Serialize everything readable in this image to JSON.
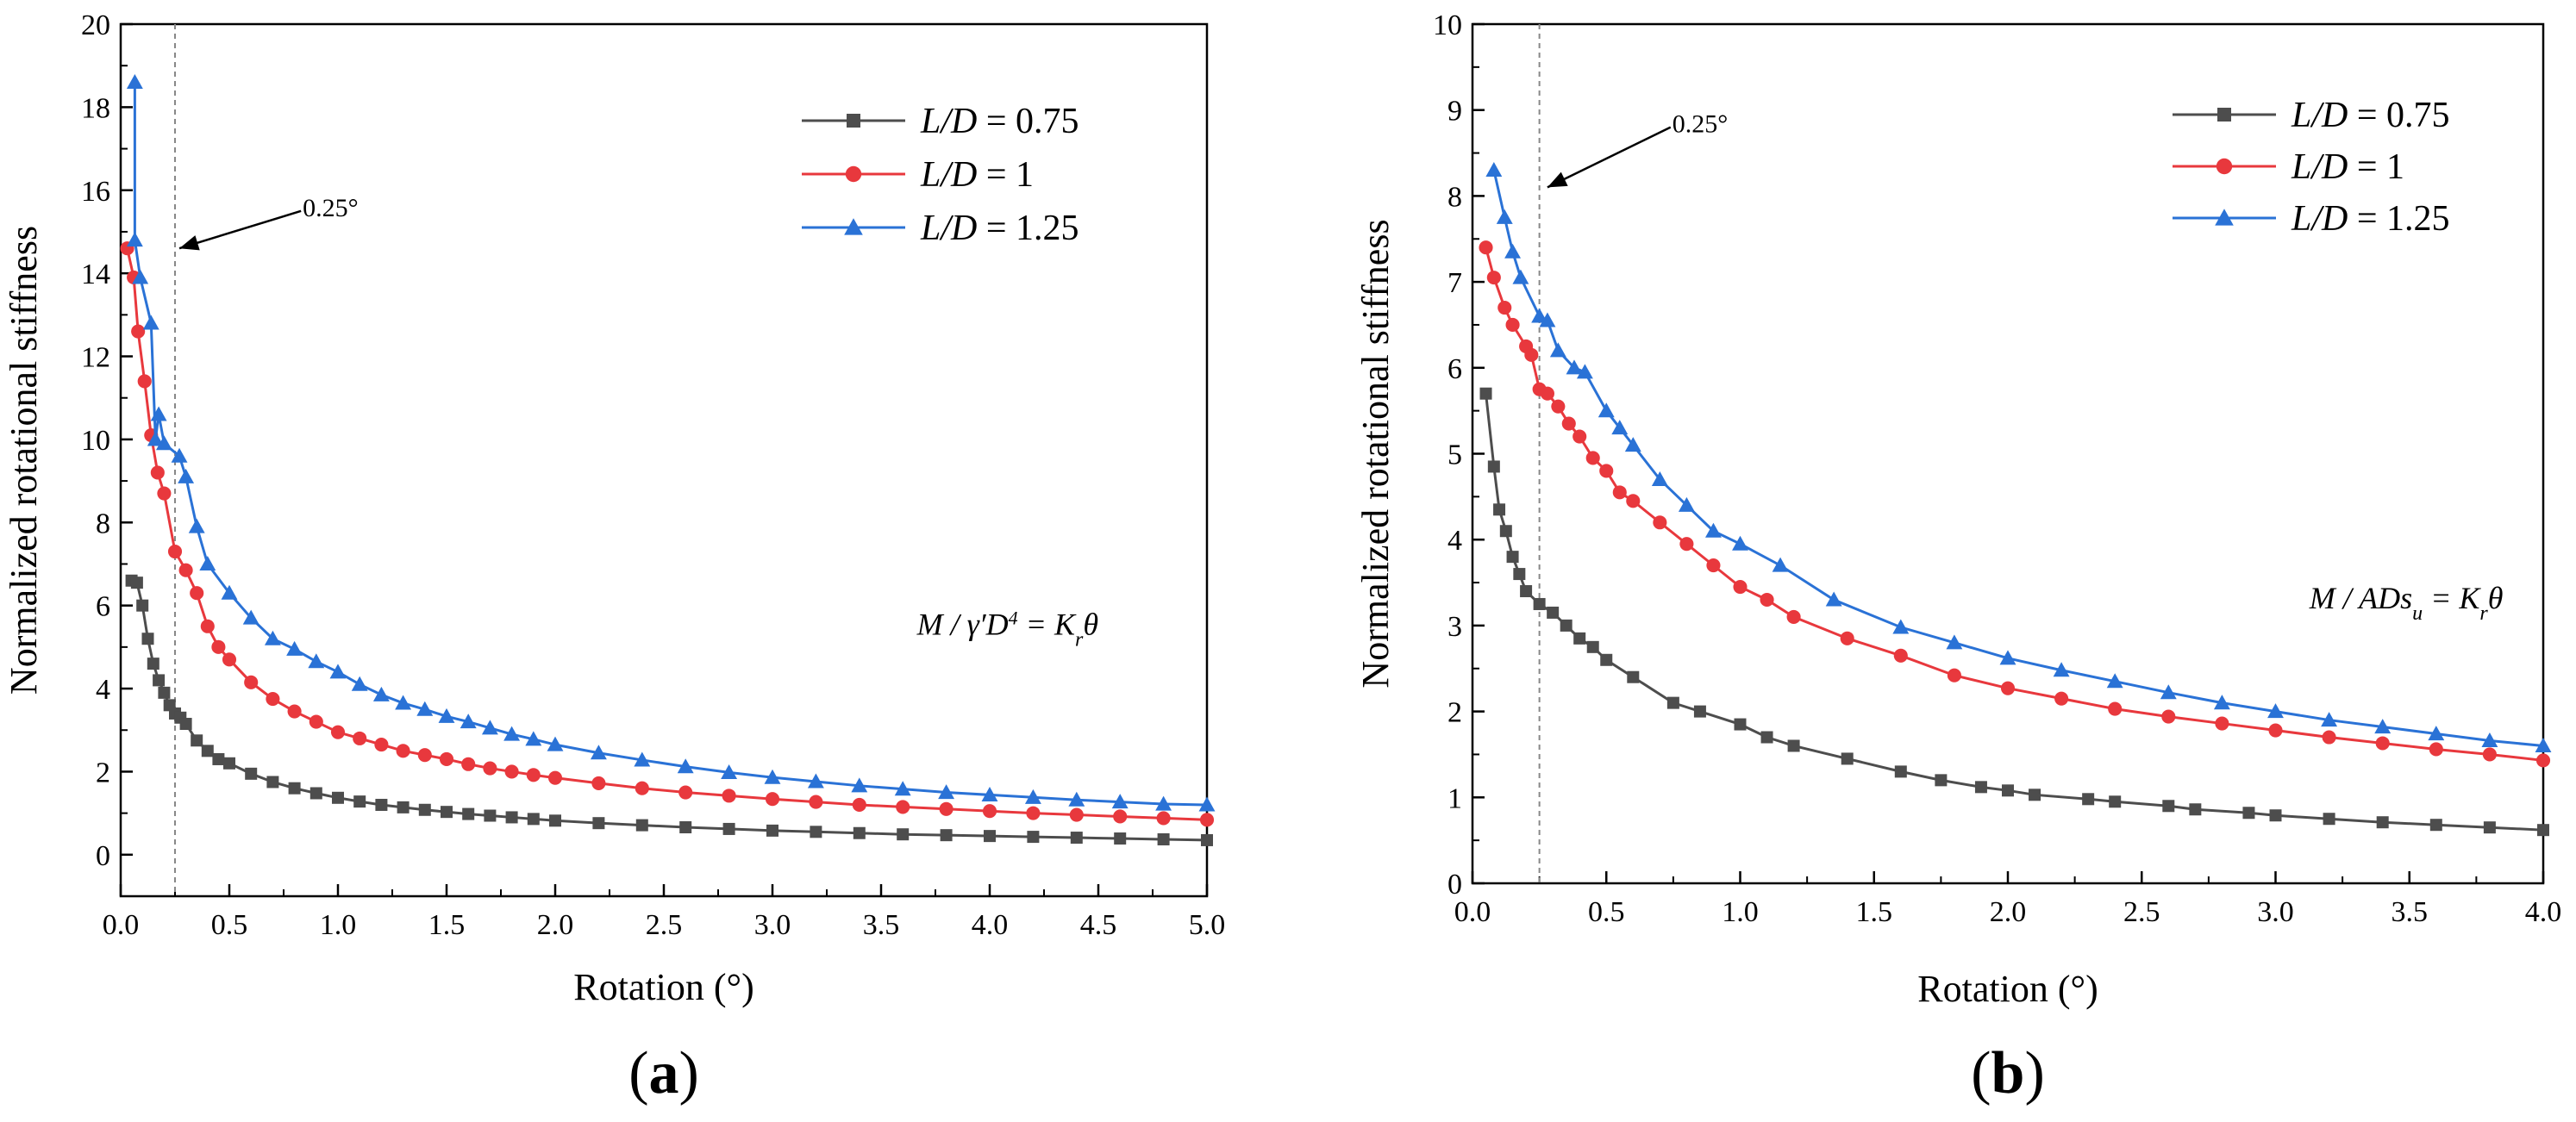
{
  "chart_data": [
    {
      "type": "line",
      "panel_label": "a",
      "xlabel": "Rotation (°)",
      "ylabel": "Normalized rotational stiffness",
      "xlim": [
        0,
        5
      ],
      "ylim": [
        -1,
        20
      ],
      "xticks": [
        0,
        0.5,
        1,
        1.5,
        2,
        2.5,
        3,
        3.5,
        4,
        4.5,
        5
      ],
      "xtick_labels": [
        "0.0",
        "0.5",
        "1.0",
        "1.5",
        "2.0",
        "2.5",
        "3.0",
        "3.5",
        "4.0",
        "4.5",
        "5.0"
      ],
      "yticks": [
        0,
        2,
        4,
        6,
        8,
        10,
        12,
        14,
        16,
        18,
        20
      ],
      "ytick_labels": [
        "0",
        "2",
        "4",
        "6",
        "8",
        "10",
        "12",
        "14",
        "16",
        "18",
        "20"
      ],
      "legend_position": "top-right",
      "vline": {
        "x": 0.25,
        "label": "0.25°",
        "arrow_from": [
          0.83,
          15.5
        ],
        "arrow_to": [
          0.27,
          14.6
        ]
      },
      "formula": {
        "anchor": [
          4.5,
          5.3
        ],
        "parts": [
          [
            "M / ",
            ""
          ],
          [
            "γ",
            ""
          ],
          [
            "′",
            ""
          ],
          [
            "D",
            ""
          ],
          [
            "4",
            "sup"
          ],
          [
            " = K",
            ""
          ],
          [
            "r",
            "sub"
          ],
          [
            "θ",
            ""
          ]
        ]
      },
      "series": [
        {
          "name": "L/D = 0.75",
          "legend_italic": "L/D",
          "legend_rest": " = 0.75",
          "color": "#4d4d4d",
          "marker": "square",
          "x": [
            0.05,
            0.075,
            0.1,
            0.125,
            0.15,
            0.175,
            0.2,
            0.225,
            0.25,
            0.275,
            0.3,
            0.35,
            0.4,
            0.45,
            0.5,
            0.6,
            0.7,
            0.8,
            0.9,
            1.0,
            1.1,
            1.2,
            1.3,
            1.4,
            1.5,
            1.6,
            1.7,
            1.8,
            1.9,
            2.0,
            2.2,
            2.4,
            2.6,
            2.8,
            3.0,
            3.2,
            3.4,
            3.6,
            3.8,
            4.0,
            4.2,
            4.4,
            4.6,
            4.8,
            5.0
          ],
          "y": [
            6.6,
            6.55,
            6.0,
            5.2,
            4.6,
            4.2,
            3.9,
            3.6,
            3.4,
            3.3,
            3.15,
            2.75,
            2.5,
            2.3,
            2.2,
            1.95,
            1.75,
            1.6,
            1.48,
            1.37,
            1.28,
            1.2,
            1.14,
            1.08,
            1.03,
            0.98,
            0.94,
            0.9,
            0.86,
            0.82,
            0.76,
            0.71,
            0.66,
            0.62,
            0.58,
            0.55,
            0.52,
            0.49,
            0.47,
            0.45,
            0.43,
            0.41,
            0.39,
            0.37,
            0.35
          ]
        },
        {
          "name": "L/D = 1",
          "legend_italic": "L/D",
          "legend_rest": " = 1",
          "color": "#e8383d",
          "marker": "circle",
          "x": [
            0.03,
            0.06,
            0.08,
            0.11,
            0.14,
            0.17,
            0.2,
            0.25,
            0.3,
            0.35,
            0.4,
            0.45,
            0.5,
            0.6,
            0.7,
            0.8,
            0.9,
            1.0,
            1.1,
            1.2,
            1.3,
            1.4,
            1.5,
            1.6,
            1.7,
            1.8,
            1.9,
            2.0,
            2.2,
            2.4,
            2.6,
            2.8,
            3.0,
            3.2,
            3.4,
            3.6,
            3.8,
            4.0,
            4.2,
            4.4,
            4.6,
            4.8,
            5.0
          ],
          "y": [
            14.6,
            13.9,
            12.6,
            11.4,
            10.1,
            9.2,
            8.7,
            7.3,
            6.85,
            6.3,
            5.5,
            5.0,
            4.7,
            4.15,
            3.75,
            3.45,
            3.2,
            2.95,
            2.8,
            2.65,
            2.5,
            2.4,
            2.3,
            2.18,
            2.08,
            2.0,
            1.92,
            1.85,
            1.72,
            1.6,
            1.5,
            1.42,
            1.34,
            1.27,
            1.2,
            1.15,
            1.1,
            1.05,
            1.0,
            0.96,
            0.92,
            0.88,
            0.84
          ]
        },
        {
          "name": "L/D = 1.25",
          "legend_italic": "L/D",
          "legend_rest": " = 1.25",
          "color": "#2a72d6",
          "marker": "triangle",
          "x": [
            0.065,
            0.065,
            0.09,
            0.14,
            0.16,
            0.175,
            0.2,
            0.27,
            0.3,
            0.35,
            0.4,
            0.5,
            0.6,
            0.7,
            0.8,
            0.9,
            1.0,
            1.1,
            1.2,
            1.3,
            1.4,
            1.5,
            1.6,
            1.7,
            1.8,
            1.9,
            2.0,
            2.2,
            2.4,
            2.6,
            2.8,
            3.0,
            3.2,
            3.4,
            3.6,
            3.8,
            4.0,
            4.2,
            4.4,
            4.6,
            4.8,
            5.0
          ],
          "y": [
            18.6,
            14.8,
            13.9,
            12.8,
            10.0,
            10.6,
            9.9,
            9.6,
            9.1,
            7.9,
            7.0,
            6.3,
            5.7,
            5.2,
            4.95,
            4.65,
            4.4,
            4.1,
            3.85,
            3.65,
            3.5,
            3.33,
            3.2,
            3.05,
            2.9,
            2.78,
            2.65,
            2.45,
            2.28,
            2.12,
            1.98,
            1.86,
            1.76,
            1.66,
            1.58,
            1.5,
            1.44,
            1.38,
            1.32,
            1.27,
            1.22,
            1.2
          ]
        }
      ]
    },
    {
      "type": "line",
      "panel_label": "b",
      "xlabel": "Rotation (°)",
      "ylabel": "Normalized rotational stiffness",
      "xlim": [
        0,
        4
      ],
      "ylim": [
        0,
        10
      ],
      "xticks": [
        0,
        0.5,
        1,
        1.5,
        2,
        2.5,
        3,
        3.5,
        4
      ],
      "xtick_labels": [
        "0.0",
        "0.5",
        "1.0",
        "1.5",
        "2.0",
        "2.5",
        "3.0",
        "3.5",
        "4.0"
      ],
      "yticks": [
        0,
        1,
        2,
        3,
        4,
        5,
        6,
        7,
        8,
        9,
        10
      ],
      "ytick_labels": [
        "0",
        "1",
        "2",
        "3",
        "4",
        "5",
        "6",
        "7",
        "8",
        "9",
        "10"
      ],
      "legend_position": "top-right",
      "vline": {
        "x": 0.25,
        "label": "0.25°",
        "arrow_from": [
          0.74,
          8.8
        ],
        "arrow_to": [
          0.28,
          8.1
        ]
      },
      "formula": {
        "anchor": [
          3.85,
          3.2
        ],
        "parts": [
          [
            "M / ADs",
            ""
          ],
          [
            "u",
            "sub"
          ],
          [
            " = K",
            ""
          ],
          [
            "r",
            "sub"
          ],
          [
            "θ",
            ""
          ]
        ]
      },
      "series": [
        {
          "name": "L/D = 0.75",
          "legend_italic": "L/D",
          "legend_rest": " = 0.75",
          "color": "#4d4d4d",
          "marker": "square",
          "x": [
            0.05,
            0.08,
            0.1,
            0.125,
            0.15,
            0.175,
            0.2,
            0.25,
            0.3,
            0.35,
            0.4,
            0.45,
            0.5,
            0.6,
            0.75,
            0.85,
            1.0,
            1.1,
            1.2,
            1.4,
            1.6,
            1.75,
            1.9,
            2.0,
            2.1,
            2.3,
            2.4,
            2.6,
            2.7,
            2.9,
            3.0,
            3.2,
            3.4,
            3.6,
            3.8,
            4.0
          ],
          "y": [
            5.7,
            4.85,
            4.35,
            4.1,
            3.8,
            3.6,
            3.4,
            3.25,
            3.15,
            3.0,
            2.85,
            2.75,
            2.6,
            2.4,
            2.1,
            2.0,
            1.85,
            1.7,
            1.6,
            1.45,
            1.3,
            1.2,
            1.12,
            1.08,
            1.03,
            0.98,
            0.95,
            0.9,
            0.86,
            0.82,
            0.79,
            0.75,
            0.71,
            0.68,
            0.65,
            0.62
          ]
        },
        {
          "name": "L/D = 1",
          "legend_italic": "L/D",
          "legend_rest": " = 1",
          "color": "#e8383d",
          "marker": "circle",
          "x": [
            0.05,
            0.08,
            0.12,
            0.15,
            0.2,
            0.22,
            0.25,
            0.28,
            0.32,
            0.36,
            0.4,
            0.45,
            0.5,
            0.55,
            0.6,
            0.7,
            0.8,
            0.9,
            1.0,
            1.1,
            1.2,
            1.4,
            1.6,
            1.8,
            2.0,
            2.2,
            2.4,
            2.6,
            2.8,
            3.0,
            3.2,
            3.4,
            3.6,
            3.8,
            4.0
          ],
          "y": [
            7.4,
            7.05,
            6.7,
            6.5,
            6.25,
            6.15,
            5.75,
            5.7,
            5.55,
            5.35,
            5.2,
            4.95,
            4.8,
            4.55,
            4.45,
            4.2,
            3.95,
            3.7,
            3.45,
            3.3,
            3.1,
            2.85,
            2.65,
            2.42,
            2.27,
            2.15,
            2.03,
            1.94,
            1.86,
            1.78,
            1.7,
            1.63,
            1.56,
            1.5,
            1.43
          ]
        },
        {
          "name": "L/D = 1.25",
          "legend_italic": "L/D",
          "legend_rest": " = 1.25",
          "color": "#2a72d6",
          "marker": "triangle",
          "x": [
            0.08,
            0.12,
            0.15,
            0.18,
            0.25,
            0.28,
            0.32,
            0.38,
            0.42,
            0.5,
            0.55,
            0.6,
            0.7,
            0.8,
            0.9,
            1.0,
            1.15,
            1.35,
            1.6,
            1.8,
            2.0,
            2.2,
            2.4,
            2.6,
            2.8,
            3.0,
            3.2,
            3.4,
            3.6,
            3.8,
            4.0
          ],
          "y": [
            8.3,
            7.75,
            7.35,
            7.05,
            6.6,
            6.55,
            6.2,
            6.0,
            5.95,
            5.5,
            5.3,
            5.1,
            4.7,
            4.4,
            4.1,
            3.95,
            3.7,
            3.3,
            2.98,
            2.8,
            2.62,
            2.48,
            2.35,
            2.22,
            2.1,
            2.0,
            1.9,
            1.82,
            1.74,
            1.66,
            1.6
          ]
        }
      ]
    }
  ]
}
